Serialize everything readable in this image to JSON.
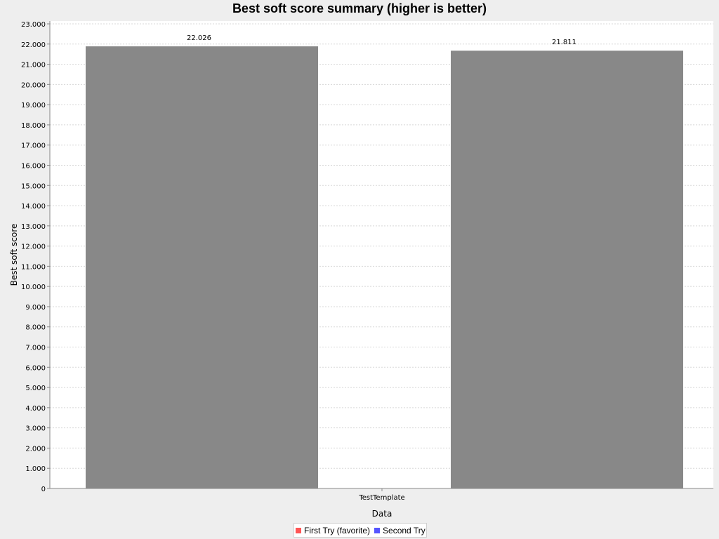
{
  "chart_data": {
    "type": "bar",
    "title": "Best soft score summary (higher is better)",
    "xlabel": "Data",
    "ylabel": "Best soft score",
    "categories": [
      "TestTemplate"
    ],
    "series": [
      {
        "name": "First Try (favorite)",
        "values": [
          22.026
        ],
        "value_labels": [
          "22.026"
        ],
        "color": "#ff5555"
      },
      {
        "name": "Second Try",
        "values": [
          21.811
        ],
        "value_labels": [
          "21.811"
        ],
        "color": "#5555ff"
      }
    ],
    "ylim": [
      0,
      23
    ],
    "yticks": [
      0,
      1,
      2,
      3,
      4,
      5,
      6,
      7,
      8,
      9,
      10,
      11,
      12,
      13,
      14,
      15,
      16,
      17,
      18,
      19,
      20,
      21,
      22,
      23
    ],
    "ytick_labels": [
      "0",
      "1.000",
      "2.000",
      "3.000",
      "4.000",
      "5.000",
      "6.000",
      "7.000",
      "8.000",
      "9.000",
      "10.000",
      "11.000",
      "12.000",
      "13.000",
      "14.000",
      "15.000",
      "16.000",
      "17.000",
      "18.000",
      "19.000",
      "20.000",
      "21.000",
      "22.000",
      "23.000"
    ],
    "grid": true,
    "legend_position": "bottom-center"
  }
}
